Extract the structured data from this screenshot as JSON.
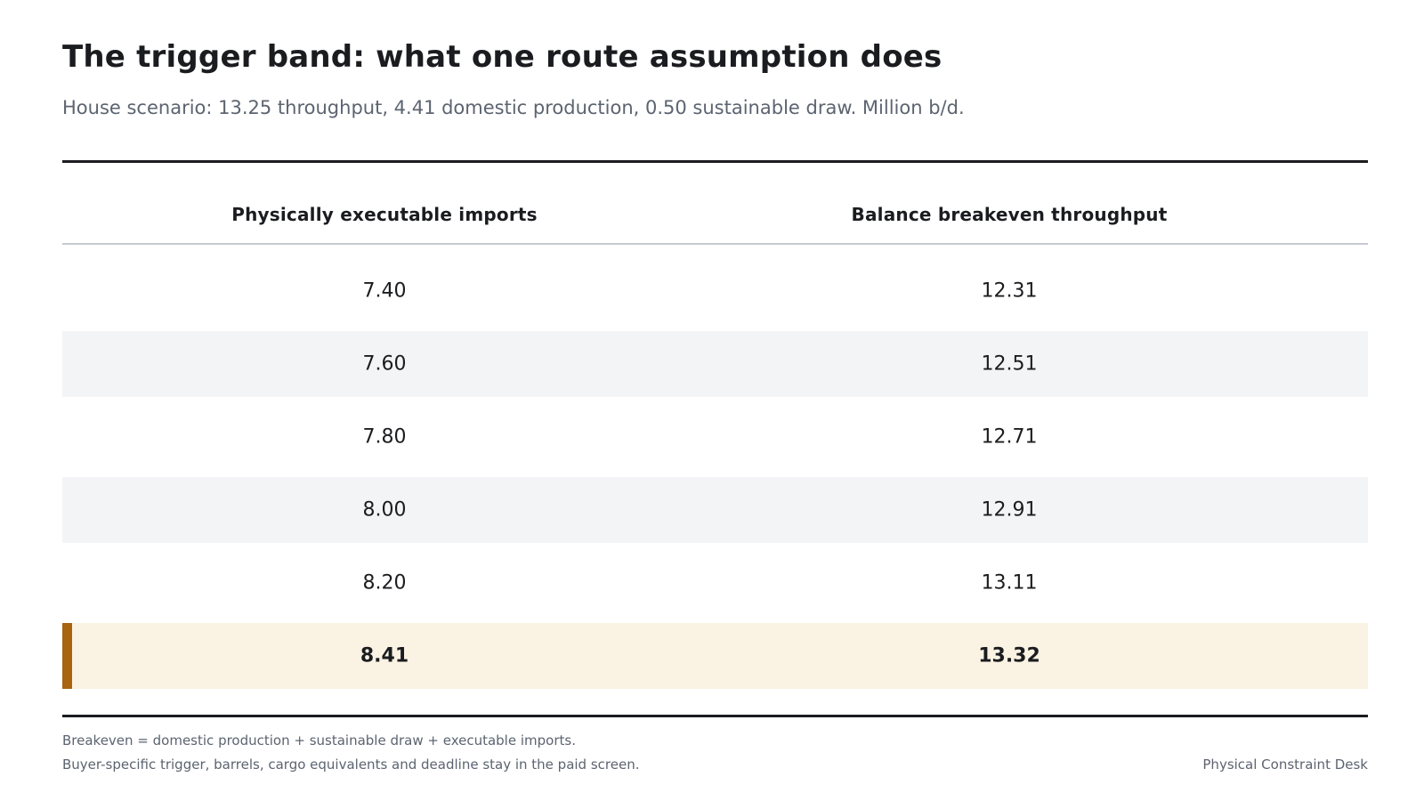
{
  "title": "The trigger band: what one route assumption does",
  "subtitle": "House scenario: 13.25 throughput, 4.41 domestic production, 0.50 sustainable draw. Million b/d.",
  "chart_data": {
    "type": "table",
    "columns": [
      "Physically executable imports",
      "Balance breakeven throughput"
    ],
    "rows": [
      [
        "7.40",
        "12.31"
      ],
      [
        "7.60",
        "12.51"
      ],
      [
        "7.80",
        "12.71"
      ],
      [
        "8.00",
        "12.91"
      ],
      [
        "8.20",
        "13.11"
      ],
      [
        "8.41",
        "13.32"
      ]
    ],
    "highlighted_row_index": 5,
    "colors": {
      "highlight_fill": "#faf3e3",
      "highlight_marker": "#a8640e",
      "stripe_fill": "#f3f4f6",
      "text": "#1b1c1f",
      "muted_text": "#5c6470"
    }
  },
  "footnotes": [
    "Breakeven = domestic production + sustainable draw + executable imports.",
    "Buyer-specific trigger, barrels, cargo equivalents and deadline stay in the paid screen."
  ],
  "source": "Physical Constraint Desk"
}
